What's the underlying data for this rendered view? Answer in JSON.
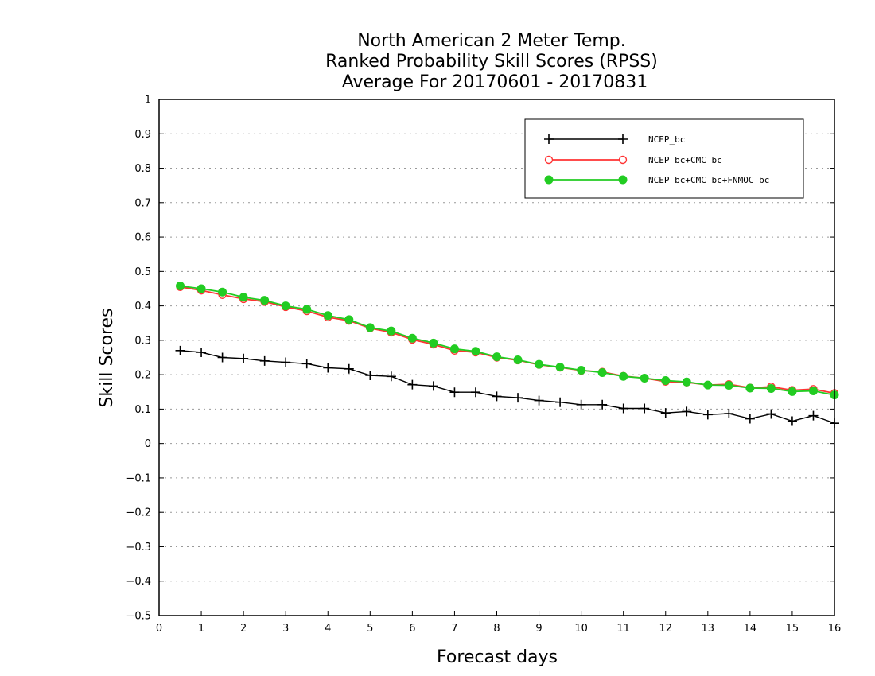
{
  "chart_data": {
    "type": "line",
    "title": [
      "North American 2 Meter Temp.",
      "Ranked Probability Skill Scores (RPSS)",
      "Average For 20170601 - 20170831"
    ],
    "xlabel": "Forecast days",
    "ylabel": "Skill Scores",
    "xlim": [
      0,
      16
    ],
    "ylim": [
      -0.5,
      1
    ],
    "xticks": [
      0,
      1,
      2,
      3,
      4,
      5,
      6,
      7,
      8,
      9,
      10,
      11,
      12,
      13,
      14,
      15,
      16
    ],
    "yticks": [
      -0.5,
      -0.4,
      -0.3,
      -0.2,
      -0.1,
      0,
      0.1,
      0.2,
      0.3,
      0.4,
      0.5,
      0.6,
      0.7,
      0.8,
      0.9,
      1
    ],
    "ytick_labels": [
      "−0.5",
      "−0.4",
      "−0.3",
      "−0.2",
      "−0.1",
      "0",
      "0.1",
      "0.2",
      "0.3",
      "0.4",
      "0.5",
      "0.6",
      "0.7",
      "0.8",
      "0.9",
      "1"
    ],
    "grid": "horizontal-dotted",
    "legend_position": "top-right",
    "x": [
      0.5,
      1,
      1.5,
      2,
      2.5,
      3,
      3.5,
      4,
      4.5,
      5,
      5.5,
      6,
      6.5,
      7,
      7.5,
      8,
      8.5,
      9,
      9.5,
      10,
      10.5,
      11,
      11.5,
      12,
      12.5,
      13,
      13.5,
      14,
      14.5,
      15,
      15.5,
      16
    ],
    "series": [
      {
        "name": "NCEP_bc",
        "color": "#000000",
        "marker": "plus",
        "values": [
          0.27,
          0.265,
          0.25,
          0.247,
          0.24,
          0.236,
          0.232,
          0.22,
          0.217,
          0.198,
          0.195,
          0.171,
          0.167,
          0.149,
          0.149,
          0.137,
          0.133,
          0.125,
          0.12,
          0.113,
          0.113,
          0.102,
          0.102,
          0.089,
          0.093,
          0.084,
          0.087,
          0.072,
          0.086,
          0.065,
          0.081,
          0.059
        ]
      },
      {
        "name": "NCEP_bc+CMC_bc",
        "color": "#ff3333",
        "marker": "open-circle",
        "values": [
          0.455,
          0.445,
          0.432,
          0.42,
          0.412,
          0.397,
          0.385,
          0.367,
          0.357,
          0.335,
          0.323,
          0.302,
          0.288,
          0.27,
          0.265,
          0.25,
          0.242,
          0.229,
          0.221,
          0.212,
          0.208,
          0.196,
          0.19,
          0.18,
          0.178,
          0.17,
          0.172,
          0.162,
          0.165,
          0.155,
          0.158,
          0.146
        ]
      },
      {
        "name": "NCEP_bc+CMC_bc+FNMOC_bc",
        "color": "#22cc22",
        "marker": "filled-circle",
        "values": [
          0.458,
          0.45,
          0.44,
          0.425,
          0.416,
          0.4,
          0.39,
          0.372,
          0.36,
          0.337,
          0.327,
          0.306,
          0.292,
          0.275,
          0.268,
          0.252,
          0.243,
          0.23,
          0.222,
          0.213,
          0.206,
          0.195,
          0.19,
          0.183,
          0.179,
          0.17,
          0.169,
          0.161,
          0.16,
          0.151,
          0.153,
          0.141
        ]
      }
    ]
  }
}
